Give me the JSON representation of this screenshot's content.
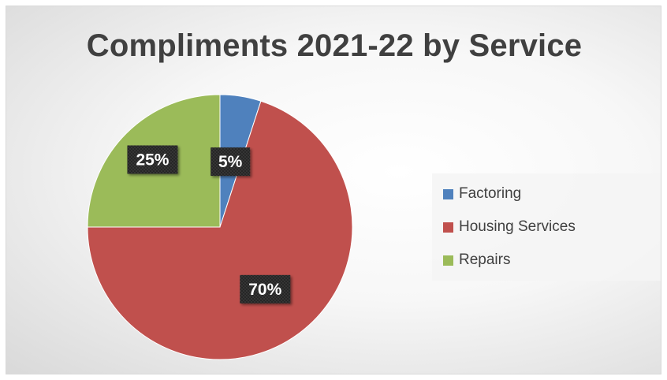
{
  "chart_data": {
    "type": "pie",
    "title": "Compliments 2021-22 by Service",
    "categories": [
      "Factoring",
      "Housing Services",
      "Repairs"
    ],
    "values": [
      5,
      70,
      25
    ],
    "labels": [
      "5%",
      "70%",
      "25%"
    ],
    "colors": [
      "#4f81bd",
      "#c0504d",
      "#9bbb59"
    ],
    "legend_position": "right"
  }
}
